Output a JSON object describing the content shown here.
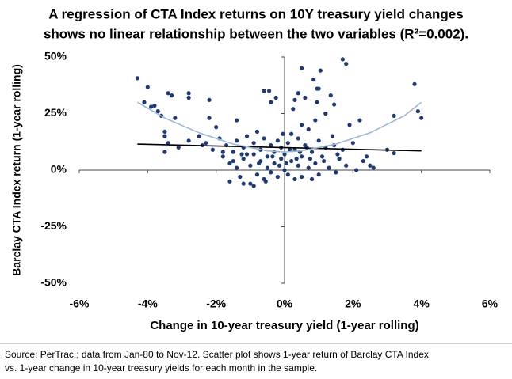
{
  "chart_data": {
    "type": "scatter",
    "title_lines": [
      "A regression of CTA Index returns on 10Y treasury yield changes",
      "shows no linear relationship between the two variables (R²=0.002)."
    ],
    "x_label": "Change in 10-year treasury yield (1-year rolling)",
    "y_label": "Barclay CTA Index  return (1-year rolling)",
    "source_lines": [
      "Source: PerTrac.; data from Jan-80 to Nov-12. Scatter plot shows 1-year return of Barclay CTA Index",
      "vs. 1-year change in 10-year treasury yields for each month in the sample."
    ],
    "xlim": [
      -6,
      6
    ],
    "xticks": [
      {
        "value": -6,
        "label": "-6%"
      },
      {
        "value": -4,
        "label": "-4%"
      },
      {
        "value": -2,
        "label": "-2%"
      },
      {
        "value": 0,
        "label": "0%"
      },
      {
        "value": 2,
        "label": "2%"
      },
      {
        "value": 4,
        "label": "4%"
      },
      {
        "value": 6,
        "label": "6%"
      }
    ],
    "ylim": [
      -50,
      50
    ],
    "yticks": [
      {
        "value": -50,
        "label": "-50%"
      },
      {
        "value": -25,
        "label": "-25%"
      },
      {
        "value": 0,
        "label": "0%"
      },
      {
        "value": 25,
        "label": "25%"
      },
      {
        "value": 50,
        "label": "50%"
      }
    ],
    "series": [
      {
        "color": "#1c3a78",
        "x": [
          -4.3,
          -4.0,
          -3.4,
          -3.3,
          -2.8,
          -2.8,
          -2.2,
          -4.1,
          -3.9,
          -3.7,
          -3.8,
          -3.6,
          -3.2,
          -3.5,
          -3.5,
          -3.5,
          -2.2,
          -1.4,
          -0.6,
          -0.45,
          -0.25,
          -0.4,
          0.5,
          1.7,
          1.8,
          1.05,
          0.4,
          0.3,
          0.25,
          1.0,
          0.95,
          1.35,
          1.45,
          3.8,
          3.9,
          4.0,
          3.2,
          3.0,
          3.2,
          0.85,
          0.95,
          0.6,
          -2.5,
          -2.3,
          -2.1,
          -1.9,
          -1.8,
          -1.7,
          -1.6,
          -1.5,
          -1.4,
          -1.4,
          -1.3,
          -1.2,
          -1.2,
          -1.1,
          -1.0,
          -1.0,
          -0.9,
          -0.9,
          -0.8,
          -0.8,
          -0.7,
          -0.7,
          -0.6,
          -0.6,
          -0.5,
          -0.5,
          -0.4,
          -0.4,
          -0.3,
          -0.3,
          -0.2,
          -0.2,
          -0.1,
          -0.1,
          0,
          0,
          0.1,
          0.1,
          0.2,
          0.2,
          0.3,
          0.3,
          0.4,
          0.4,
          0.5,
          0.5,
          0.6,
          0.7,
          0.7,
          0.8,
          0.8,
          0.9,
          1.0,
          1.0,
          1.1,
          1.2,
          1.3,
          1.4,
          1.5,
          1.6,
          1.7,
          1.8,
          2.0,
          2.1,
          2.3,
          2.5,
          2.6,
          1.9,
          2.2,
          -1.6,
          -0.9,
          -1.2,
          0.5,
          0.9,
          1.2,
          -2.0,
          -2.8,
          -3.1,
          -3.4,
          -1.5,
          -1.1,
          -0.75,
          -0.35,
          0.15,
          0.35,
          0.65,
          1.15,
          1.55,
          -2.4,
          -1.8,
          -0.15,
          0.05,
          0.45,
          0.75,
          -0.55,
          -1.25,
          1.45,
          2.4,
          -0.05
        ],
        "values": [
          40.6,
          36.7,
          34,
          33,
          34,
          32,
          31,
          30,
          28,
          26,
          28.5,
          24,
          23,
          17,
          15,
          8,
          23,
          22,
          35,
          35,
          32,
          30,
          45,
          49,
          47,
          44,
          34,
          31,
          27,
          36,
          30,
          33,
          29,
          38,
          26,
          23,
          24,
          9,
          7.5,
          40,
          36,
          32,
          15,
          12,
          9,
          14,
          6,
          11,
          3,
          8,
          13,
          1,
          -3,
          5,
          10,
          15,
          -6,
          2,
          7,
          12,
          -2,
          17,
          4,
          9,
          -4,
          14,
          1,
          6,
          11,
          -1,
          3,
          8,
          13,
          -3,
          5,
          10,
          0,
          7,
          -2,
          12,
          4,
          16,
          -4,
          9,
          2,
          14,
          6,
          -3,
          11,
          1,
          18,
          -4,
          8,
          3,
          13,
          -2,
          6,
          10,
          1,
          15,
          -1,
          5,
          9,
          2,
          12,
          0,
          4,
          2,
          1,
          20,
          22,
          -5,
          -7,
          -6,
          20,
          22,
          25,
          19,
          13,
          10,
          12,
          4,
          7,
          3,
          6,
          9,
          5,
          10,
          4,
          7,
          11,
          8,
          2,
          3,
          8,
          5,
          -5,
          7,
          11,
          6,
          16
        ]
      }
    ],
    "fit_lines": [
      {
        "color": "#000000",
        "x": [
          -4.3,
          4.0
        ],
        "values": [
          11.5,
          8.5
        ]
      },
      {
        "color": "#9bb7d6",
        "x": [
          -4.3,
          -3.5,
          -2.5,
          -1.5,
          -0.5,
          0,
          0.5,
          1.5,
          2.5,
          3.5,
          4.0
        ],
        "values": [
          30,
          23,
          16.5,
          11.5,
          8.5,
          8,
          8.5,
          11.5,
          16.5,
          24,
          30
        ]
      }
    ]
  }
}
